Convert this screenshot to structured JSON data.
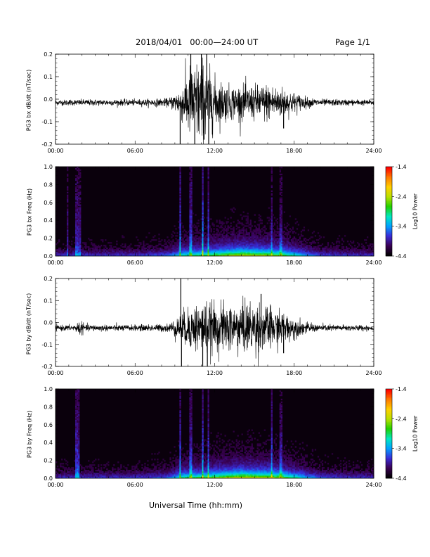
{
  "header": {
    "date_range": "2018/04/01   00:00—24:00 UT",
    "page": "Page 1/1"
  },
  "xlabel": "Universal Time (hh:mm)",
  "colors": {
    "trace": "#000000",
    "spectrogram_background": "#0a000c",
    "colormap": [
      "#000000",
      "#3a0052",
      "#3a2bd6",
      "#00a0ff",
      "#00e8c0",
      "#20d000",
      "#b8e000",
      "#ffd000",
      "#ff7a00",
      "#ff0000"
    ]
  },
  "chart_data": [
    {
      "type": "line",
      "ylabel": "PG3 bx dB/dt (nT/sec)",
      "x_ticks": [
        "00:00",
        "06:00",
        "12:00",
        "18:00",
        "24:00"
      ],
      "x_range_hours": [
        0,
        24
      ],
      "y_ticks": [
        "0.2",
        "0.1",
        "0.0",
        "-0.1",
        "-0.2"
      ],
      "ylim": [
        -0.2,
        0.2
      ],
      "baseline": -0.015,
      "activity_envelope": {
        "hours": [
          0,
          2,
          6,
          8.5,
          9.4,
          10,
          11,
          12,
          13,
          14,
          15,
          16,
          17,
          18,
          19,
          20,
          24
        ],
        "amplitude": [
          0.008,
          0.009,
          0.009,
          0.012,
          0.04,
          0.1,
          0.13,
          0.075,
          0.05,
          0.05,
          0.05,
          0.055,
          0.045,
          0.03,
          0.015,
          0.01,
          0.008
        ]
      },
      "spikes": [
        {
          "hour": 9.4,
          "value": -0.2
        },
        {
          "hour": 10.2,
          "value": 0.2
        },
        {
          "hour": 10.5,
          "value": -0.2
        },
        {
          "hour": 11.0,
          "value": 0.2
        },
        {
          "hour": 11.2,
          "value": -0.18
        },
        {
          "hour": 11.4,
          "value": 0.2
        },
        {
          "hour": 11.55,
          "value": -0.2
        },
        {
          "hour": 17.2,
          "value": -0.13
        }
      ]
    },
    {
      "type": "heatmap",
      "ylabel": "PG3 bx Freq (Hz)",
      "x_ticks": [
        "00:00",
        "06:00",
        "12:00",
        "18:00",
        "24:00"
      ],
      "x_range_hours": [
        0,
        24
      ],
      "y_ticks": [
        "1.0",
        "0.8",
        "0.6",
        "0.4",
        "0.2",
        "0.0"
      ],
      "ylim": [
        0,
        1.0
      ],
      "colorbar": {
        "label": "Log10 Power",
        "ticks": [
          "-1.4",
          "-2.4",
          "-3.4",
          "-4.4"
        ],
        "range": [
          -4.4,
          -1.4
        ]
      },
      "activity_envelope": {
        "hours": [
          0,
          2,
          6,
          8.5,
          9.4,
          10,
          11,
          12,
          13,
          14,
          15,
          16,
          17,
          18,
          19,
          20,
          24
        ],
        "amplitude": [
          0.1,
          0.12,
          0.12,
          0.2,
          0.45,
          0.55,
          0.6,
          0.7,
          0.8,
          0.9,
          0.85,
          0.8,
          0.7,
          0.5,
          0.3,
          0.15,
          0.1
        ]
      },
      "vertical_streaks": [
        {
          "hour": 0.9,
          "strength": 0.35
        },
        {
          "hour": 1.6,
          "strength": 0.45
        },
        {
          "hour": 1.8,
          "strength": 0.4
        },
        {
          "hour": 9.4,
          "strength": 0.7
        },
        {
          "hour": 10.2,
          "strength": 0.55
        },
        {
          "hour": 11.1,
          "strength": 0.8
        },
        {
          "hour": 11.5,
          "strength": 0.6
        },
        {
          "hour": 16.3,
          "strength": 0.4
        },
        {
          "hour": 17.0,
          "strength": 0.35
        }
      ]
    },
    {
      "type": "line",
      "ylabel": "PG3 by dB/dt (nT/sec)",
      "x_ticks": [
        "00:00",
        "06:00",
        "12:00",
        "18:00",
        "24:00"
      ],
      "x_range_hours": [
        0,
        24
      ],
      "y_ticks": [
        "0.2",
        "0.1",
        "0.0",
        "-0.1",
        "-0.2"
      ],
      "ylim": [
        -0.2,
        0.2
      ],
      "baseline": -0.025,
      "activity_envelope": {
        "hours": [
          0,
          1.5,
          1.8,
          2.2,
          6,
          8.5,
          9.4,
          10,
          11,
          12,
          13,
          14,
          15,
          16,
          17,
          18,
          19,
          20,
          24
        ],
        "amplitude": [
          0.008,
          0.009,
          0.025,
          0.01,
          0.009,
          0.012,
          0.04,
          0.06,
          0.08,
          0.07,
          0.07,
          0.075,
          0.08,
          0.065,
          0.05,
          0.03,
          0.015,
          0.01,
          0.008
        ]
      },
      "spikes": [
        {
          "hour": 9.45,
          "value": 0.2
        },
        {
          "hour": 9.5,
          "value": -0.2
        },
        {
          "hour": 11.1,
          "value": -0.2
        },
        {
          "hour": 11.45,
          "value": -0.2
        },
        {
          "hour": 17.2,
          "value": -0.14
        },
        {
          "hour": 15.5,
          "value": 0.13
        }
      ]
    },
    {
      "type": "heatmap",
      "ylabel": "PG3 by Freq (Hz)",
      "x_ticks": [
        "00:00",
        "06:00",
        "12:00",
        "18:00",
        "24:00"
      ],
      "x_range_hours": [
        0,
        24
      ],
      "y_ticks": [
        "1.0",
        "0.8",
        "0.6",
        "0.4",
        "0.2",
        "0.0"
      ],
      "ylim": [
        0,
        1.0
      ],
      "colorbar": {
        "label": "Log10 Power",
        "ticks": [
          "-1.4",
          "-2.4",
          "-3.4",
          "-4.4"
        ],
        "range": [
          -4.4,
          -1.4
        ]
      },
      "activity_envelope": {
        "hours": [
          0,
          2,
          6,
          8.5,
          9.4,
          10,
          11,
          12,
          13,
          14,
          15,
          16,
          17,
          18,
          19,
          20,
          24
        ],
        "amplitude": [
          0.1,
          0.13,
          0.12,
          0.22,
          0.5,
          0.6,
          0.65,
          0.75,
          0.85,
          0.95,
          0.9,
          0.85,
          0.75,
          0.55,
          0.35,
          0.18,
          0.1
        ]
      },
      "vertical_streaks": [
        {
          "hour": 1.6,
          "strength": 0.55
        },
        {
          "hour": 1.75,
          "strength": 0.5
        },
        {
          "hour": 9.4,
          "strength": 0.6
        },
        {
          "hour": 10.2,
          "strength": 0.5
        },
        {
          "hour": 11.1,
          "strength": 0.7
        },
        {
          "hour": 11.5,
          "strength": 0.55
        },
        {
          "hour": 16.3,
          "strength": 0.6
        },
        {
          "hour": 17.0,
          "strength": 0.4
        }
      ]
    }
  ]
}
